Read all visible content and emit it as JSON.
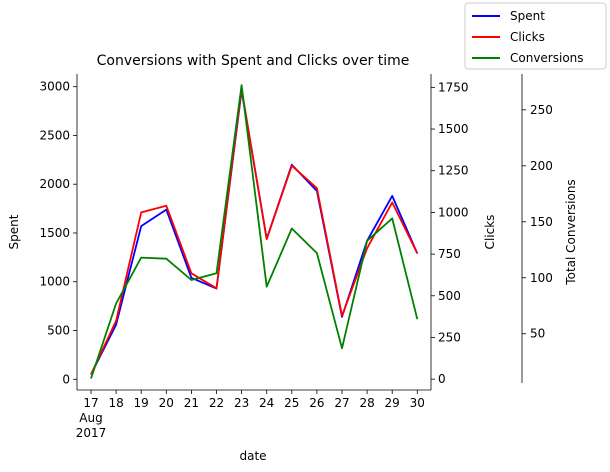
{
  "chart_data": {
    "type": "line",
    "title": "Conversions with Spent and Clicks over time",
    "xlabel": "date",
    "x_ticks": [
      "17",
      "18",
      "19",
      "20",
      "21",
      "22",
      "23",
      "24",
      "25",
      "26",
      "27",
      "28",
      "29",
      "30"
    ],
    "x_tick_sub": [
      "Aug",
      "2017"
    ],
    "x": [
      "2017-08-17",
      "2017-08-18",
      "2017-08-19",
      "2017-08-20",
      "2017-08-21",
      "2017-08-22",
      "2017-08-23",
      "2017-08-24",
      "2017-08-25",
      "2017-08-26",
      "2017-08-27",
      "2017-08-28",
      "2017-08-29",
      "2017-08-30"
    ],
    "axes": {
      "left": {
        "label": "Spent",
        "ylim": [
          -110,
          3130
        ],
        "ticks": [
          0,
          500,
          1000,
          1500,
          2000,
          2500,
          3000
        ]
      },
      "right1": {
        "label": "Clicks",
        "ylim": [
          -65,
          1830
        ],
        "ticks": [
          0,
          250,
          500,
          750,
          1000,
          1250,
          1500,
          1750
        ]
      },
      "right2": {
        "label": "Total Conversions",
        "ylim": [
          6,
          282
        ],
        "ticks": [
          50,
          100,
          150,
          200,
          250
        ]
      }
    },
    "series": [
      {
        "name": "Spent",
        "axis": "left",
        "color": "#0000ff",
        "values": [
          50,
          560,
          1570,
          1740,
          1040,
          930,
          2960,
          1440,
          2200,
          1930,
          640,
          1420,
          1880,
          1290
        ]
      },
      {
        "name": "Clicks",
        "axis": "right1",
        "color": "#ff0000",
        "values": [
          28,
          350,
          1000,
          1040,
          635,
          545,
          1740,
          840,
          1280,
          1145,
          380,
          785,
          1060,
          755
        ]
      },
      {
        "name": "Conversions",
        "axis": "right2",
        "color": "#008000",
        "values": [
          10,
          77,
          118,
          117,
          98,
          104,
          272,
          92,
          144,
          122,
          37,
          133,
          153,
          63
        ]
      }
    ],
    "legend_position": "top-right",
    "grid": false
  }
}
